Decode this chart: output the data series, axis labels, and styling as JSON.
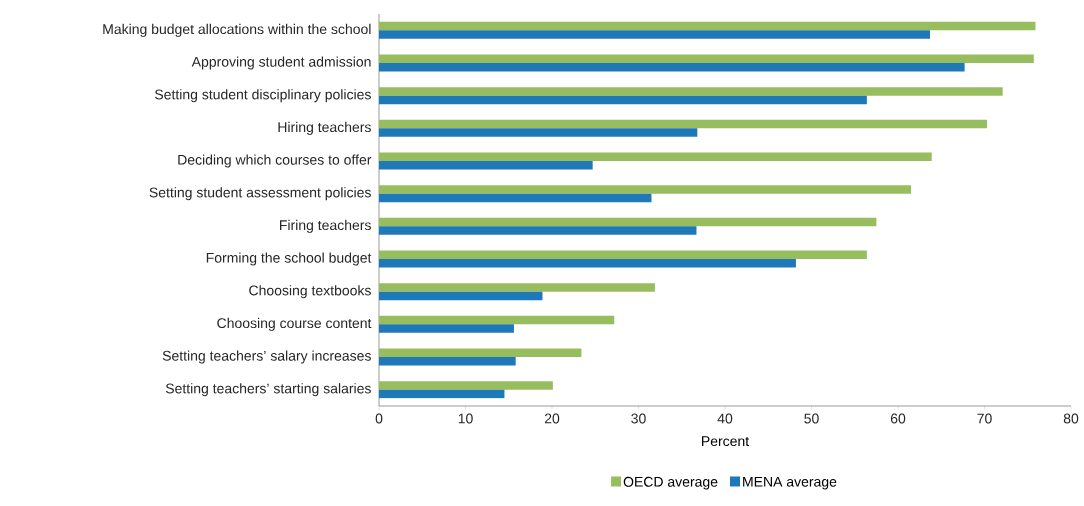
{
  "chart_data": {
    "type": "bar",
    "orientation": "horizontal",
    "xlabel": "Percent",
    "categories": [
      "Making budget allocations within the school",
      "Approving student admission",
      "Setting student disciplinary policies",
      "Hiring teachers",
      "Deciding which courses to offer",
      "Setting student assessment policies",
      "Firing teachers",
      "Forming the school budget",
      "Choosing textbooks",
      "Choosing course content",
      "Setting teachers’ salary increases",
      "Setting teachers’ starting salaries"
    ],
    "series": [
      {
        "name": "OECD average",
        "color": "#97bd5e",
        "values": [
          75.9,
          75.7,
          72.1,
          70.3,
          63.9,
          61.5,
          57.5,
          56.4,
          31.9,
          27.2,
          23.4,
          20.1
        ]
      },
      {
        "name": "MENA average",
        "color": "#1f78b8",
        "values": [
          63.7,
          67.7,
          56.4,
          36.8,
          24.7,
          31.5,
          36.7,
          48.2,
          18.9,
          15.6,
          15.8,
          14.5
        ]
      }
    ],
    "xlim": [
      0,
      80
    ],
    "xticks": [
      0,
      10,
      20,
      30,
      40,
      50,
      60,
      70,
      80
    ],
    "grid": false,
    "legend": "bottom"
  }
}
